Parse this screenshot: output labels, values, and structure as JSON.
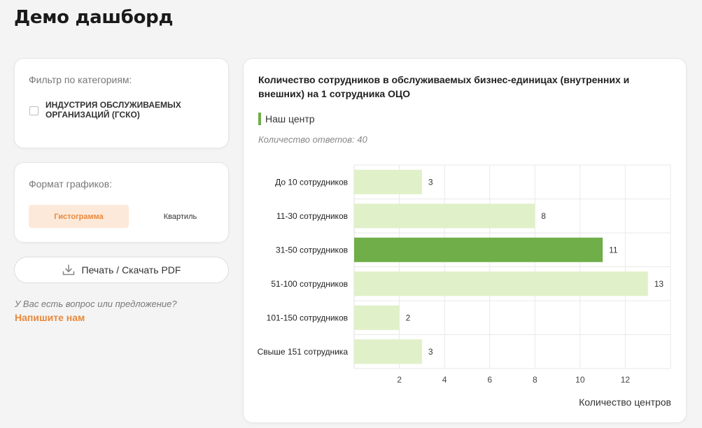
{
  "page": {
    "title": "Демо дашборд"
  },
  "filter": {
    "label": "Фильтр по категориям:",
    "options": [
      {
        "label": "ИНДУСТРИЯ ОБСЛУЖИВАЕМЫХ ОРГАНИЗАЦИЙ (ГСКО)",
        "checked": false
      }
    ]
  },
  "format": {
    "label": "Формат графиков:",
    "options": [
      {
        "label": "Гистограмма",
        "active": true
      },
      {
        "label": "Квартиль",
        "active": false
      }
    ]
  },
  "print": {
    "label": "Печать / Скачать PDF",
    "icon": "download-icon"
  },
  "feedback": {
    "question": "У Вас есть вопрос или предложение?",
    "link": "Напишите нам"
  },
  "colors": {
    "accent": "#e8893c",
    "highlight_bar": "#6fae49",
    "default_bar": "#e0f0c8"
  },
  "chart": {
    "legend_label": "Наш центр",
    "answers": "Количество ответов: 40"
  },
  "chart_data": {
    "type": "bar",
    "orientation": "horizontal",
    "title": "Количество сотрудников в обслуживаемых бизнес-единицах (внутренних и внешних) на 1 сотрудника ОЦО",
    "categories": [
      "До 10 сотрудников",
      "11-30 сотрудников",
      "31-50 сотрудников",
      "51-100 сотрудников",
      "101-150 сотрудников",
      "Свыше 151 сотрудника"
    ],
    "values": [
      3,
      8,
      11,
      13,
      2,
      3
    ],
    "highlighted_category": "31-50 сотрудников",
    "xlabel": "Количество центров",
    "ylabel": "",
    "xlim": [
      0,
      14
    ],
    "xticks": [
      2,
      4,
      6,
      8,
      10,
      12
    ],
    "grid": true,
    "legend": "top-left"
  }
}
